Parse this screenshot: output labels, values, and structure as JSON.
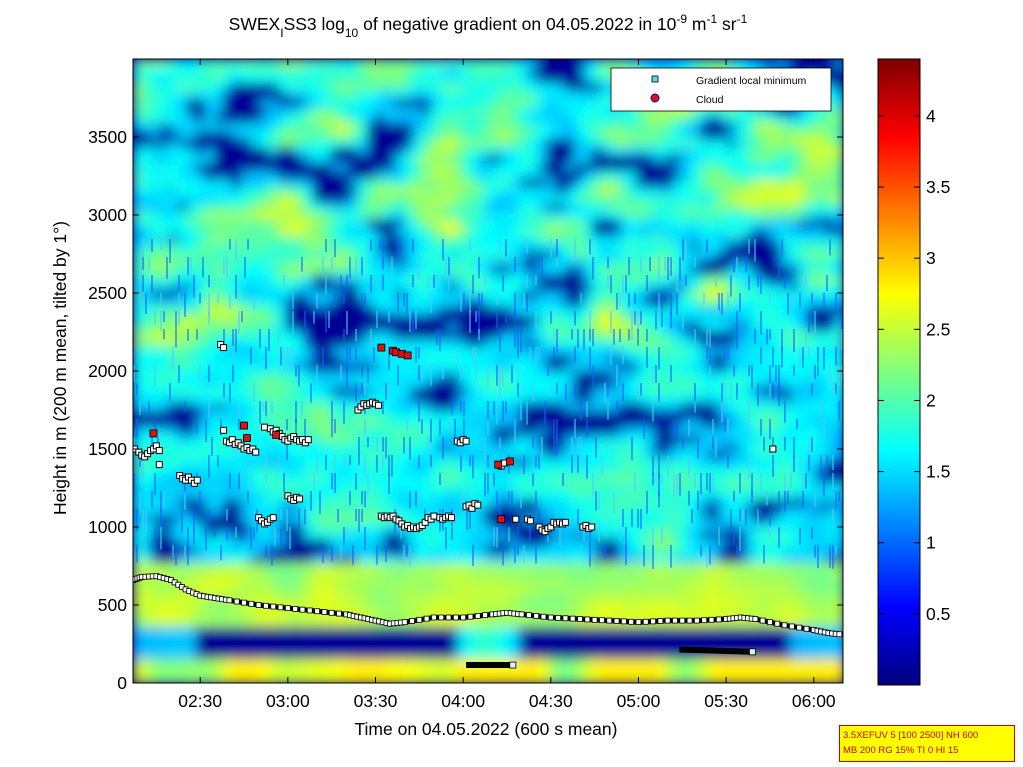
{
  "title": {
    "p1": "SWEX",
    "sub1": "I",
    "p2": "SS3 log",
    "sub2": "10",
    "p3": " of negative gradient on 04.05.2022 in 10",
    "sup1": "-9",
    "p4": " m",
    "sup2": "-1",
    "p5": " sr",
    "sup3": "-1"
  },
  "info_box": {
    "line1": "3.5XEFUV 5 [100 2500] NH 600",
    "line2": "MB 200 RG 15% TI 0 HI 15"
  },
  "chart_data": {
    "type": "heatmap",
    "xlabel": "Time on 04.05.2022 (600 s mean)",
    "ylabel": "Height in m (200 m mean, tilted by 1°)",
    "x_range": [
      "02:07",
      "06:10"
    ],
    "y_range": [
      0,
      4000
    ],
    "x_ticks": [
      "02:30",
      "03:00",
      "03:30",
      "04:00",
      "04:30",
      "05:00",
      "05:30",
      "06:00"
    ],
    "x_tick_minutes": [
      150,
      180,
      210,
      240,
      270,
      300,
      330,
      360
    ],
    "x_min_minutes": 127,
    "x_max_minutes": 370,
    "y_ticks": [
      0,
      500,
      1000,
      1500,
      2000,
      2500,
      3000,
      3500
    ],
    "colorbar": {
      "range": [
        0,
        4.4
      ],
      "ticks": [
        0.5,
        1,
        1.5,
        2,
        2.5,
        3,
        3.5,
        4
      ],
      "colormap": "jet"
    },
    "legend": {
      "position": "top-right",
      "entries": [
        {
          "label": "Gradient local minimum",
          "marker": "square",
          "color": "#55dde0"
        },
        {
          "label": "Cloud",
          "marker": "circle",
          "color": "#e01010"
        }
      ]
    },
    "boundary_layer_line": {
      "x": [
        127,
        130,
        135,
        140,
        145,
        150,
        155,
        160,
        170,
        180,
        190,
        200,
        205,
        210,
        215,
        220,
        230,
        240,
        250,
        255,
        260,
        270,
        280,
        290,
        300,
        310,
        320,
        330,
        335,
        340,
        350,
        360,
        365,
        370
      ],
      "y": [
        660,
        680,
        685,
        660,
        600,
        560,
        545,
        530,
        500,
        480,
        460,
        440,
        420,
        400,
        380,
        390,
        420,
        420,
        440,
        450,
        440,
        420,
        410,
        400,
        390,
        400,
        400,
        410,
        420,
        410,
        370,
        340,
        320,
        310
      ]
    },
    "low_segments": [
      {
        "x": [
          241,
          257
        ],
        "y": [
          115,
          115
        ]
      },
      {
        "x": [
          314,
          339
        ],
        "y": [
          215,
          200
        ]
      }
    ],
    "gradient_minima": [
      {
        "x": 127.5,
        "y": 1500
      },
      {
        "x": 129,
        "y": 1480
      },
      {
        "x": 130,
        "y": 1460
      },
      {
        "x": 131,
        "y": 1450
      },
      {
        "x": 132,
        "y": 1470
      },
      {
        "x": 133,
        "y": 1490
      },
      {
        "x": 134,
        "y": 1500
      },
      {
        "x": 135,
        "y": 1520
      },
      {
        "x": 136,
        "y": 1490
      },
      {
        "x": 136,
        "y": 1400
      },
      {
        "x": 143,
        "y": 1330
      },
      {
        "x": 144,
        "y": 1310
      },
      {
        "x": 145,
        "y": 1300
      },
      {
        "x": 146,
        "y": 1320
      },
      {
        "x": 147,
        "y": 1300
      },
      {
        "x": 148,
        "y": 1280
      },
      {
        "x": 149,
        "y": 1300
      },
      {
        "x": 157,
        "y": 2170
      },
      {
        "x": 158,
        "y": 2150
      },
      {
        "x": 158,
        "y": 1620
      },
      {
        "x": 159,
        "y": 1550
      },
      {
        "x": 160,
        "y": 1540
      },
      {
        "x": 161,
        "y": 1560
      },
      {
        "x": 162,
        "y": 1530
      },
      {
        "x": 163,
        "y": 1540
      },
      {
        "x": 164,
        "y": 1520
      },
      {
        "x": 165,
        "y": 1500
      },
      {
        "x": 166,
        "y": 1510
      },
      {
        "x": 167,
        "y": 1490
      },
      {
        "x": 168,
        "y": 1500
      },
      {
        "x": 169,
        "y": 1480
      },
      {
        "x": 170,
        "y": 1060
      },
      {
        "x": 171,
        "y": 1040
      },
      {
        "x": 172,
        "y": 1020
      },
      {
        "x": 173,
        "y": 1030
      },
      {
        "x": 174,
        "y": 1050
      },
      {
        "x": 175,
        "y": 1060
      },
      {
        "x": 172,
        "y": 1640
      },
      {
        "x": 174,
        "y": 1630
      },
      {
        "x": 175,
        "y": 1610
      },
      {
        "x": 176,
        "y": 1620
      },
      {
        "x": 177,
        "y": 1600
      },
      {
        "x": 178,
        "y": 1580
      },
      {
        "x": 179,
        "y": 1560
      },
      {
        "x": 180,
        "y": 1550
      },
      {
        "x": 181,
        "y": 1570
      },
      {
        "x": 182,
        "y": 1580
      },
      {
        "x": 183,
        "y": 1560
      },
      {
        "x": 184,
        "y": 1550
      },
      {
        "x": 185,
        "y": 1560
      },
      {
        "x": 186,
        "y": 1540
      },
      {
        "x": 187,
        "y": 1560
      },
      {
        "x": 180,
        "y": 1200
      },
      {
        "x": 181,
        "y": 1180
      },
      {
        "x": 182,
        "y": 1170
      },
      {
        "x": 183,
        "y": 1190
      },
      {
        "x": 184,
        "y": 1180
      },
      {
        "x": 204,
        "y": 1750
      },
      {
        "x": 205,
        "y": 1770
      },
      {
        "x": 206,
        "y": 1790
      },
      {
        "x": 207,
        "y": 1780
      },
      {
        "x": 208,
        "y": 1790
      },
      {
        "x": 209,
        "y": 1800
      },
      {
        "x": 210,
        "y": 1790
      },
      {
        "x": 211,
        "y": 1780
      },
      {
        "x": 212,
        "y": 1070
      },
      {
        "x": 213,
        "y": 1060
      },
      {
        "x": 214,
        "y": 1070
      },
      {
        "x": 215,
        "y": 1060
      },
      {
        "x": 216,
        "y": 1070
      },
      {
        "x": 217,
        "y": 1050
      },
      {
        "x": 218,
        "y": 1040
      },
      {
        "x": 219,
        "y": 1020
      },
      {
        "x": 220,
        "y": 1000
      },
      {
        "x": 221,
        "y": 1010
      },
      {
        "x": 222,
        "y": 990
      },
      {
        "x": 223,
        "y": 1000
      },
      {
        "x": 224,
        "y": 990
      },
      {
        "x": 225,
        "y": 1000
      },
      {
        "x": 226,
        "y": 1010
      },
      {
        "x": 227,
        "y": 1030
      },
      {
        "x": 228,
        "y": 1060
      },
      {
        "x": 229,
        "y": 1050
      },
      {
        "x": 230,
        "y": 1070
      },
      {
        "x": 232,
        "y": 1060
      },
      {
        "x": 233,
        "y": 1050
      },
      {
        "x": 234,
        "y": 1060
      },
      {
        "x": 235,
        "y": 1070
      },
      {
        "x": 236,
        "y": 1060
      },
      {
        "x": 238,
        "y": 1550
      },
      {
        "x": 239,
        "y": 1540
      },
      {
        "x": 240,
        "y": 1560
      },
      {
        "x": 241,
        "y": 1550
      },
      {
        "x": 241,
        "y": 1130
      },
      {
        "x": 242,
        "y": 1140
      },
      {
        "x": 243,
        "y": 1120
      },
      {
        "x": 244,
        "y": 1150
      },
      {
        "x": 245,
        "y": 1140
      },
      {
        "x": 253,
        "y": 1390
      },
      {
        "x": 254,
        "y": 1410
      },
      {
        "x": 258,
        "y": 1050
      },
      {
        "x": 262,
        "y": 1050
      },
      {
        "x": 263,
        "y": 1040
      },
      {
        "x": 266,
        "y": 1000
      },
      {
        "x": 267,
        "y": 980
      },
      {
        "x": 268,
        "y": 970
      },
      {
        "x": 269,
        "y": 990
      },
      {
        "x": 270,
        "y": 1000
      },
      {
        "x": 271,
        "y": 1030
      },
      {
        "x": 272,
        "y": 1020
      },
      {
        "x": 273,
        "y": 1030
      },
      {
        "x": 274,
        "y": 1020
      },
      {
        "x": 275,
        "y": 1030
      },
      {
        "x": 281,
        "y": 1000
      },
      {
        "x": 282,
        "y": 1010
      },
      {
        "x": 283,
        "y": 990
      },
      {
        "x": 284,
        "y": 1000
      },
      {
        "x": 346,
        "y": 1500
      }
    ],
    "clouds": [
      {
        "x": 134,
        "y": 1600
      },
      {
        "x": 165,
        "y": 1650
      },
      {
        "x": 166,
        "y": 1570
      },
      {
        "x": 176,
        "y": 1590
      },
      {
        "x": 212,
        "y": 2150
      },
      {
        "x": 216,
        "y": 2130
      },
      {
        "x": 217,
        "y": 2120
      },
      {
        "x": 219,
        "y": 2110
      },
      {
        "x": 221,
        "y": 2100
      },
      {
        "x": 252,
        "y": 1400
      },
      {
        "x": 256,
        "y": 1420
      },
      {
        "x": 253,
        "y": 1050
      }
    ]
  }
}
